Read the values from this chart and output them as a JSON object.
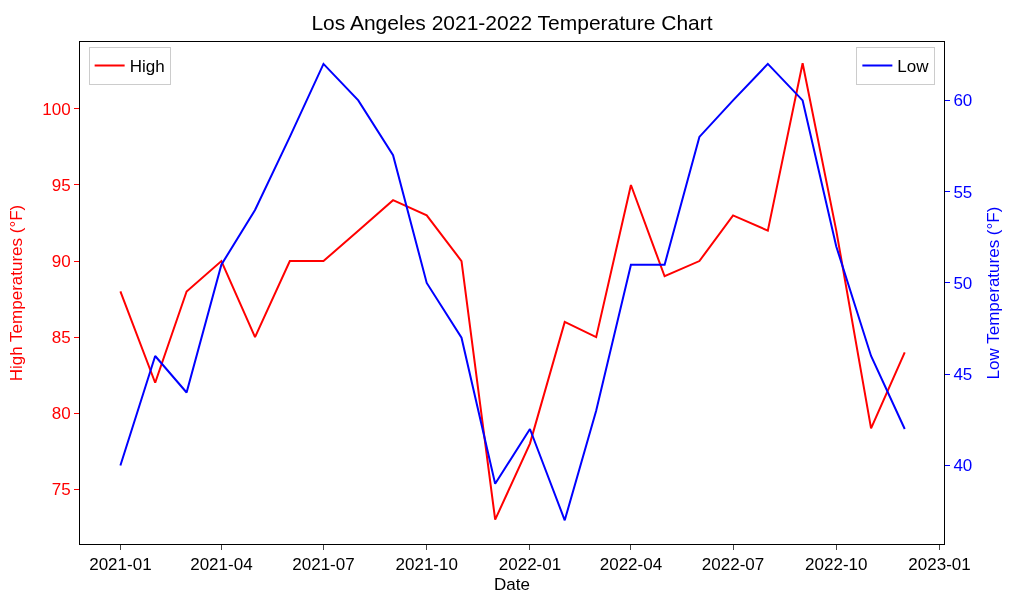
{
  "chart_data": {
    "type": "line",
    "title": "Los Angeles 2021-2022 Temperature Chart",
    "xlabel": "Date",
    "ylabel": "High Temperatures (°F)",
    "y2label": "Low Temperatures (°F)",
    "x": [
      "2021-01",
      "2021-02",
      "2021-03",
      "2021-04",
      "2021-05",
      "2021-06",
      "2021-07",
      "2021-08",
      "2021-09",
      "2021-10",
      "2021-11",
      "2021-12",
      "2022-01",
      "2022-02",
      "2022-03",
      "2022-04",
      "2022-05",
      "2022-06",
      "2022-07",
      "2022-08",
      "2022-09",
      "2022-10",
      "2022-11",
      "2022-12"
    ],
    "series": [
      {
        "name": "High",
        "color": "#ff0000",
        "values": [
          88,
          82,
          88,
          90,
          85,
          90,
          90,
          92,
          94,
          93,
          90,
          73,
          78,
          86,
          85,
          95,
          89,
          90,
          93,
          92,
          103,
          92,
          79,
          84
        ]
      },
      {
        "name": "Low",
        "color": "#0000ff",
        "axis": "y2",
        "values": [
          40,
          46,
          44,
          51,
          54,
          58,
          62,
          60,
          57,
          50,
          47,
          39,
          42,
          37,
          43,
          51,
          51,
          58,
          60,
          62,
          60,
          52,
          46,
          42
        ]
      }
    ],
    "xlim": [
      "2020-11-26",
      "2023-01-05"
    ],
    "xticks": [
      "2021-01",
      "2021-04",
      "2021-07",
      "2021-10",
      "2022-01",
      "2022-04",
      "2022-07",
      "2022-10",
      "2023-01"
    ],
    "ylim": [
      71.4,
      104.4
    ],
    "yticks": [
      75,
      80,
      85,
      90,
      95,
      100
    ],
    "y2lim": [
      35.7,
      63.2
    ],
    "y2ticks": [
      40,
      45,
      50,
      55,
      60
    ],
    "legend": "top",
    "line_style": "solid",
    "marker": "none"
  }
}
